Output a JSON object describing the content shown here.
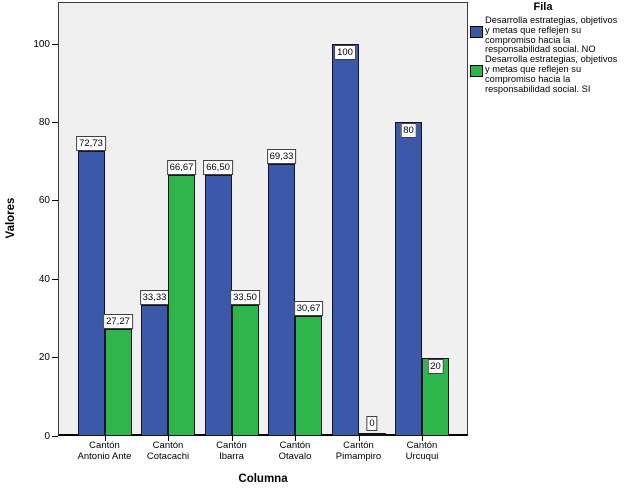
{
  "chart_data": {
    "type": "bar",
    "title": "",
    "xlabel": "Columna",
    "ylabel": "Valores",
    "ylim": [
      0,
      110
    ],
    "yticks": [
      0,
      20,
      40,
      60,
      80,
      100
    ],
    "grid": false,
    "plot_background": "#f0f0f0",
    "legend_position": "right",
    "legend_title": "Fila",
    "categories": [
      [
        "Cantón",
        "Antonio Ante"
      ],
      [
        "Cantón",
        "Cotacachi"
      ],
      [
        "Cantón",
        "Ibarra"
      ],
      [
        "Cantón",
        "Otavalo"
      ],
      [
        "Cantón",
        "Pimampiro"
      ],
      [
        "Cantón",
        "Urcuqui"
      ]
    ],
    "series": [
      {
        "name": "Desarrolla estrategias, objetivos y metas que reflejen su compromiso hacia la responsabilidad social. NO",
        "color": "#3C58A8",
        "values": [
          72.73,
          33.33,
          66.5,
          69.33,
          100,
          80
        ],
        "labels": [
          "72,73",
          "33,33",
          "66,50",
          "69,33",
          "100",
          "80"
        ],
        "label_placement": [
          "above",
          "above",
          "above",
          "above",
          "inside",
          "inside"
        ]
      },
      {
        "name": "Desarrolla estrategias, objetivos y metas que reflejen su compromiso hacia la responsabilidad social. SI",
        "color": "#2DB74A",
        "values": [
          27.27,
          66.67,
          33.5,
          30.67,
          0,
          20
        ],
        "labels": [
          "27,27",
          "66,67",
          "33,50",
          "30,67",
          "0",
          "20"
        ],
        "label_placement": [
          "above",
          "above",
          "above",
          "above",
          "zero",
          "inside"
        ]
      }
    ]
  }
}
